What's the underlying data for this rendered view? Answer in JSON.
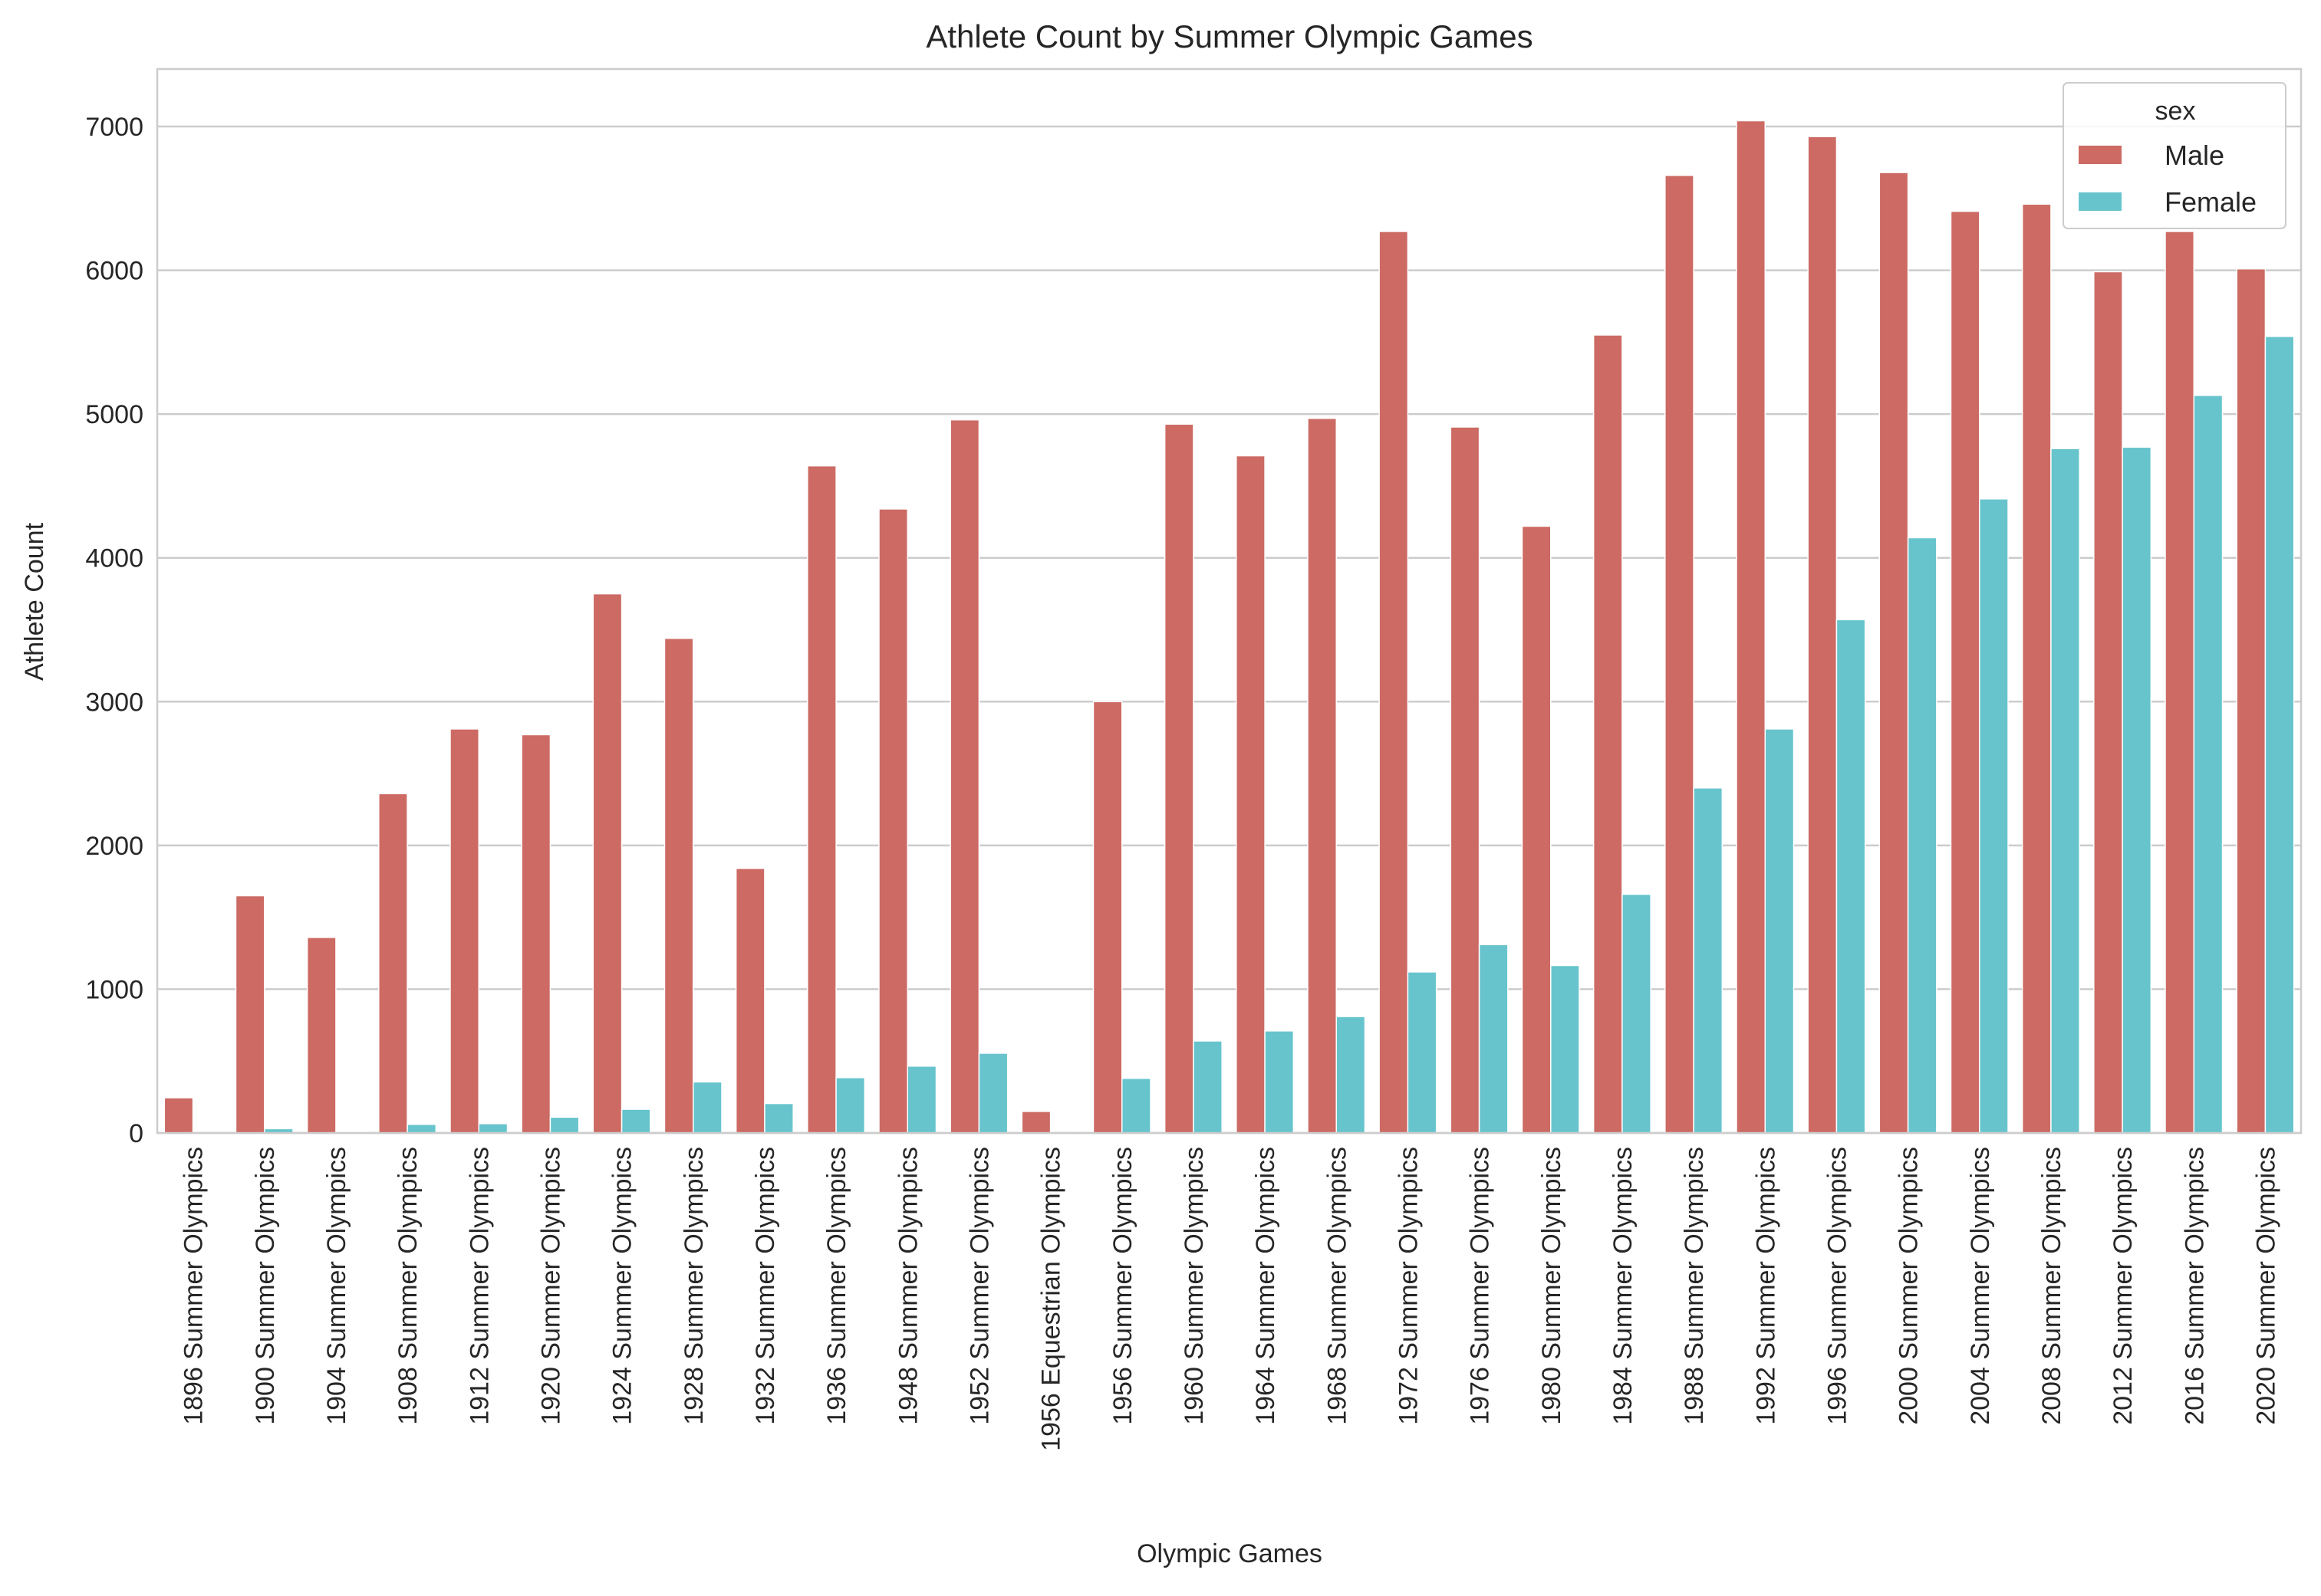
{
  "chart_data": {
    "type": "bar",
    "title": "Athlete Count by Summer Olympic Games",
    "xlabel": "Olympic Games",
    "ylabel": "Athlete Count",
    "ylim": [
      0,
      7400
    ],
    "yticks": [
      0,
      1000,
      2000,
      3000,
      4000,
      5000,
      6000,
      7000
    ],
    "grid": true,
    "legend": {
      "title": "sex",
      "placement": "top-right"
    },
    "categories": [
      "1896 Summer Olympics",
      "1900 Summer Olympics",
      "1904 Summer Olympics",
      "1908 Summer Olympics",
      "1912 Summer Olympics",
      "1920 Summer Olympics",
      "1924 Summer Olympics",
      "1928 Summer Olympics",
      "1932 Summer Olympics",
      "1936 Summer Olympics",
      "1948 Summer Olympics",
      "1952 Summer Olympics",
      "1956 Equestrian Olympics",
      "1956 Summer Olympics",
      "1960 Summer Olympics",
      "1964 Summer Olympics",
      "1968 Summer Olympics",
      "1972 Summer Olympics",
      "1976 Summer Olympics",
      "1980 Summer Olympics",
      "1984 Summer Olympics",
      "1988 Summer Olympics",
      "1992 Summer Olympics",
      "1996 Summer Olympics",
      "2000 Summer Olympics",
      "2004 Summer Olympics",
      "2008 Summer Olympics",
      "2012 Summer Olympics",
      "2016 Summer Olympics",
      "2020 Summer Olympics"
    ],
    "series": [
      {
        "name": "Male",
        "color": "#cc6a63",
        "values": [
          245,
          1650,
          1360,
          2360,
          2810,
          2770,
          3750,
          3440,
          1840,
          4640,
          4340,
          4960,
          150,
          3000,
          4930,
          4710,
          4970,
          6270,
          4910,
          4220,
          5550,
          6660,
          7040,
          6930,
          6680,
          6410,
          6460,
          5990,
          6270,
          6010
        ]
      },
      {
        "name": "Female",
        "color": "#67c4cd",
        "values": [
          0,
          30,
          8,
          60,
          65,
          110,
          165,
          355,
          205,
          385,
          465,
          555,
          10,
          380,
          640,
          710,
          810,
          1120,
          1310,
          1165,
          1660,
          2400,
          2810,
          3570,
          4140,
          4410,
          4760,
          4770,
          5130,
          5540
        ]
      }
    ]
  }
}
